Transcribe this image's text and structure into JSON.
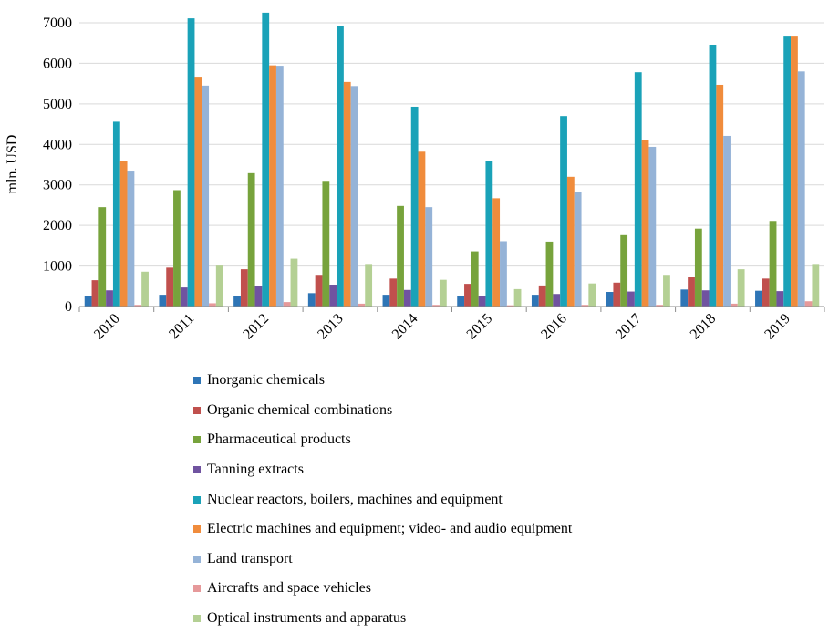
{
  "chart_data": {
    "type": "bar",
    "title": "",
    "xlabel": "",
    "ylabel": "mln. USD",
    "ylim": [
      0,
      7000
    ],
    "yticks": [
      0,
      1000,
      2000,
      3000,
      4000,
      5000,
      6000,
      7000
    ],
    "grid": true,
    "legend_position": "bottom",
    "categories": [
      "2010",
      "2011",
      "2012",
      "2013",
      "2014",
      "2015",
      "2016",
      "2017",
      "2018",
      "2019"
    ],
    "series": [
      {
        "name": "Inorganic chemicals",
        "color": "#2e75b6",
        "values": [
          250,
          290,
          260,
          330,
          290,
          260,
          290,
          360,
          420,
          390
        ]
      },
      {
        "name": "Organic chemical combinations",
        "color": "#c0504d",
        "values": [
          650,
          960,
          920,
          760,
          690,
          560,
          520,
          590,
          720,
          690
        ]
      },
      {
        "name": "Pharmaceutical products",
        "color": "#77a33c",
        "values": [
          2450,
          2870,
          3290,
          3100,
          2480,
          1360,
          1600,
          1760,
          1920,
          2110
        ]
      },
      {
        "name": "Tanning extracts",
        "color": "#7053a0",
        "values": [
          400,
          470,
          500,
          540,
          410,
          270,
          310,
          370,
          400,
          380
        ]
      },
      {
        "name": "Nuclear reactors, boilers, machines and equipment",
        "color": "#1aa2b8",
        "values": [
          4560,
          7110,
          7250,
          6920,
          4930,
          3590,
          4700,
          5780,
          6460,
          6660
        ]
      },
      {
        "name": "Electric machines and equipment; video- and audio equipment",
        "color": "#f08c3c",
        "values": [
          3580,
          5670,
          5950,
          5540,
          3820,
          2670,
          3200,
          4110,
          5470,
          6660
        ]
      },
      {
        "name": "Land transport",
        "color": "#95b3d7",
        "values": [
          3330,
          5450,
          5940,
          5440,
          2450,
          1610,
          2820,
          3940,
          4210,
          5800
        ]
      },
      {
        "name": "Aircrafts and space vehicles",
        "color": "#e6999a",
        "values": [
          40,
          80,
          110,
          70,
          40,
          30,
          40,
          40,
          70,
          130
        ]
      },
      {
        "name": "Optical instruments and apparatus",
        "color": "#b4d094",
        "values": [
          860,
          1010,
          1180,
          1050,
          660,
          430,
          570,
          760,
          920,
          1050
        ]
      }
    ]
  }
}
